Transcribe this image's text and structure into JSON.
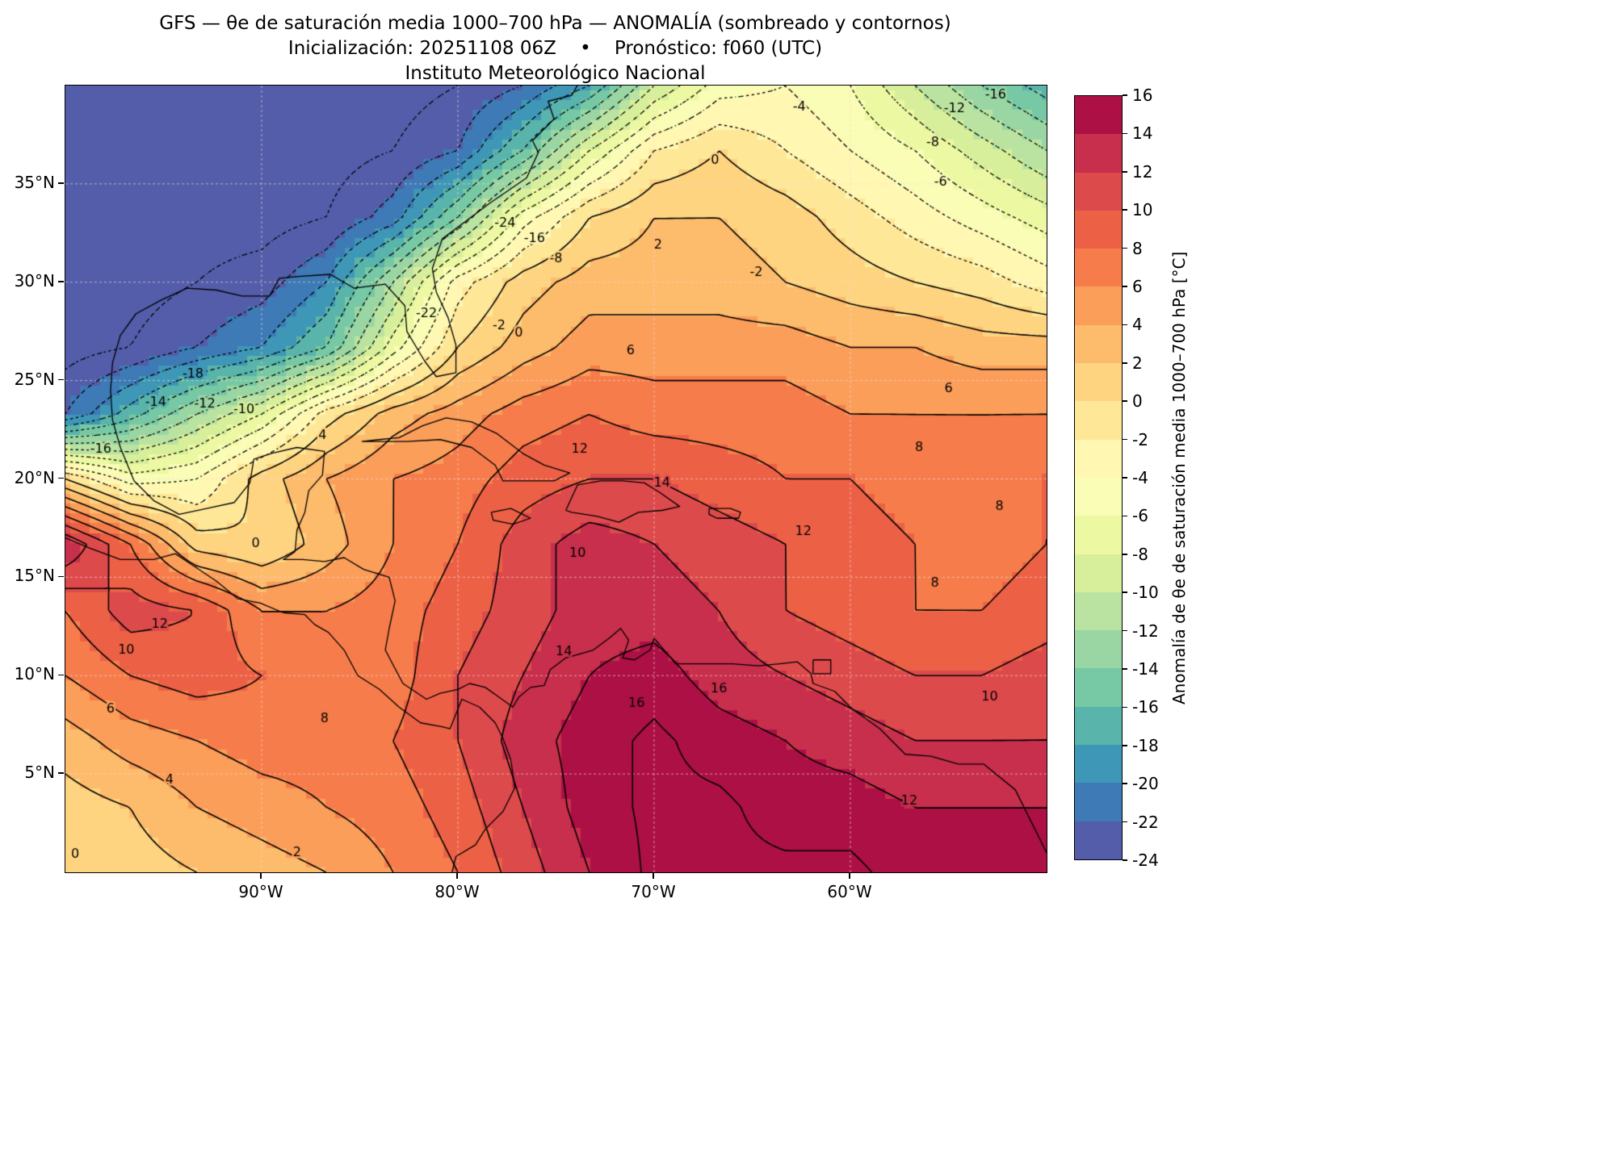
{
  "title": {
    "line1": "GFS — θe de saturación media 1000–700 hPa — ANOMALÍA (sombreado y contornos)",
    "line2": "Inicialización: 20251108 06Z    •    Pronóstico: f060 (UTC)",
    "line3": "Instituto Meteorológico Nacional"
  },
  "axes": {
    "lon_range": [
      -100,
      -50
    ],
    "lat_range": [
      0,
      40
    ],
    "x_ticks": [
      {
        "label": "90°W",
        "lon": -90
      },
      {
        "label": "80°W",
        "lon": -80
      },
      {
        "label": "70°W",
        "lon": -70
      },
      {
        "label": "60°W",
        "lon": -60
      }
    ],
    "y_ticks": [
      {
        "label": "35°N",
        "lat": 35
      },
      {
        "label": "30°N",
        "lat": 30
      },
      {
        "label": "25°N",
        "lat": 25
      },
      {
        "label": "20°N",
        "lat": 20
      },
      {
        "label": "15°N",
        "lat": 15
      },
      {
        "label": "10°N",
        "lat": 10
      },
      {
        "label": "5°N",
        "lat": 5
      }
    ]
  },
  "colorbar": {
    "label": "Anomalía de θe de saturación media 1000–700 hPa [°C]",
    "min": -24,
    "max": 16,
    "tick_values": [
      16,
      14,
      12,
      10,
      8,
      6,
      4,
      2,
      0,
      -2,
      -4,
      -6,
      -8,
      -10,
      -12,
      -14,
      -16,
      -18,
      -20,
      -22,
      -24
    ]
  },
  "chart_data": {
    "type": "heatmap",
    "field": "Anomalía de θe de saturación media 1000–700 hPa",
    "units": "°C",
    "model": "GFS",
    "init": "20251108 06Z",
    "forecast": "f060 (UTC)",
    "contour_levels": [
      -24,
      -22,
      -20,
      -18,
      -16,
      -14,
      -12,
      -10,
      -8,
      -6,
      -4,
      -2,
      0,
      2,
      4,
      6,
      8,
      10,
      12,
      14,
      16
    ],
    "band_colors": [
      "#535da9",
      "#3d7ab6",
      "#3f97b7",
      "#59b4ab",
      "#77c9a5",
      "#9ad6a4",
      "#bae3a1",
      "#d7ef9b",
      "#ecf8a2",
      "#f9fdb5",
      "#fff7b2",
      "#fee898",
      "#fed481",
      "#fdbb6c",
      "#fb9e5a",
      "#f67d4b",
      "#ec6146",
      "#dd4a4c",
      "#c72f4c",
      "#ac1045"
    ],
    "lon": [
      -100,
      -96.7,
      -93.3,
      -90,
      -86.7,
      -83.3,
      -80,
      -76.7,
      -73.3,
      -70,
      -66.7,
      -63.3,
      -60,
      -56.7,
      -53.3,
      -50
    ],
    "lat": [
      40,
      36.7,
      33.3,
      30,
      26.7,
      23.3,
      20,
      16.7,
      13.3,
      10,
      6.7,
      3.3,
      0
    ],
    "values": [
      [
        -25,
        -25,
        -25,
        -25,
        -25,
        -25,
        -24,
        -22,
        -18,
        -10,
        -5,
        -4,
        -6,
        -10,
        -14,
        -17
      ],
      [
        -25,
        -25,
        -25,
        -25,
        -25,
        -24,
        -22,
        -16,
        -8,
        -2,
        0,
        -2,
        -4,
        -6,
        -9,
        -12
      ],
      [
        -25,
        -25,
        -25,
        -25,
        -24,
        -21,
        -14,
        -5,
        0,
        2,
        2,
        1,
        -1,
        -3,
        -5,
        -7
      ],
      [
        -25,
        -25,
        -24,
        -23,
        -20,
        -12,
        -3,
        1,
        3,
        3,
        3,
        2,
        1,
        0,
        -1,
        -3
      ],
      [
        -25,
        -24,
        -22,
        -20,
        -16,
        -7,
        0,
        3,
        5,
        5,
        5,
        5,
        4,
        4,
        3,
        3
      ],
      [
        -22,
        -17,
        -12,
        -8,
        -1,
        3,
        5,
        7,
        8,
        7,
        7,
        7,
        6,
        6,
        6,
        6
      ],
      [
        0,
        -5,
        -4,
        1,
        4,
        6,
        7,
        9,
        10,
        10,
        9,
        8,
        8,
        7,
        7,
        8
      ],
      [
        14,
        8,
        1,
        0,
        3,
        6,
        8,
        11,
        13,
        12,
        11,
        10,
        9,
        8,
        7,
        8
      ],
      [
        8,
        11,
        10,
        6,
        6,
        7,
        9,
        11,
        13,
        13,
        12,
        10,
        9,
        8,
        8,
        9
      ],
      [
        6,
        8,
        9,
        8,
        7,
        7,
        10,
        12,
        14,
        15,
        13,
        12,
        11,
        10,
        10,
        11
      ],
      [
        3,
        5,
        6,
        7,
        7,
        8,
        10,
        13,
        15,
        16.5,
        15,
        14,
        13,
        12,
        12,
        12
      ],
      [
        1,
        2,
        4,
        5,
        6,
        7,
        9,
        12,
        15,
        16.5,
        16.5,
        15,
        15,
        14,
        14,
        14
      ],
      [
        0,
        1,
        2,
        3,
        4,
        6,
        8,
        11,
        14,
        16.5,
        16.5,
        16.5,
        16.5,
        15,
        15,
        15
      ]
    ],
    "annotations": [
      {
        "text": "-4",
        "lon": -62.6,
        "lat": 38.9
      },
      {
        "text": "-12",
        "lon": -54.7,
        "lat": 38.8
      },
      {
        "text": "-16",
        "lon": -52.6,
        "lat": 39.5
      },
      {
        "text": "-8",
        "lon": -55.8,
        "lat": 37.1
      },
      {
        "text": "0",
        "lon": -66.9,
        "lat": 36.2
      },
      {
        "text": "-6",
        "lon": -55.4,
        "lat": 35.1
      },
      {
        "text": "-24",
        "lon": -77.6,
        "lat": 33.0
      },
      {
        "text": "-16",
        "lon": -76.1,
        "lat": 32.2
      },
      {
        "text": "-8",
        "lon": -75.0,
        "lat": 31.2
      },
      {
        "text": "2",
        "lon": -69.8,
        "lat": 31.9
      },
      {
        "text": "-2",
        "lon": -64.8,
        "lat": 30.5
      },
      {
        "text": "-22",
        "lon": -81.6,
        "lat": 28.4
      },
      {
        "text": "-2",
        "lon": -77.9,
        "lat": 27.8
      },
      {
        "text": "0",
        "lon": -76.9,
        "lat": 27.4
      },
      {
        "text": "6",
        "lon": -71.2,
        "lat": 26.5
      },
      {
        "text": "-18",
        "lon": -93.5,
        "lat": 25.3
      },
      {
        "text": "-14",
        "lon": -95.4,
        "lat": 23.9
      },
      {
        "text": "-12",
        "lon": -92.9,
        "lat": 23.8
      },
      {
        "text": "-10",
        "lon": -90.9,
        "lat": 23.5
      },
      {
        "text": "-16",
        "lon": -98.2,
        "lat": 21.5
      },
      {
        "text": "4",
        "lon": -86.9,
        "lat": 22.2
      },
      {
        "text": "6",
        "lon": -55.0,
        "lat": 24.6
      },
      {
        "text": "8",
        "lon": -56.5,
        "lat": 21.6
      },
      {
        "text": "12",
        "lon": -73.8,
        "lat": 21.5
      },
      {
        "text": "14",
        "lon": -69.6,
        "lat": 19.8
      },
      {
        "text": "12",
        "lon": -62.4,
        "lat": 17.3
      },
      {
        "text": "10",
        "lon": -73.9,
        "lat": 16.2
      },
      {
        "text": "0",
        "lon": -90.3,
        "lat": 16.7
      },
      {
        "text": "12",
        "lon": -95.2,
        "lat": 12.6
      },
      {
        "text": "10",
        "lon": -96.9,
        "lat": 11.3
      },
      {
        "text": "6",
        "lon": -97.7,
        "lat": 8.3
      },
      {
        "text": "8",
        "lon": -86.8,
        "lat": 7.8
      },
      {
        "text": "14",
        "lon": -74.6,
        "lat": 11.2
      },
      {
        "text": "16",
        "lon": -70.9,
        "lat": 8.6
      },
      {
        "text": "16",
        "lon": -66.7,
        "lat": 9.3
      },
      {
        "text": "4",
        "lon": -94.7,
        "lat": 4.7
      },
      {
        "text": "0",
        "lon": -99.5,
        "lat": 0.9
      },
      {
        "text": "2",
        "lon": -88.2,
        "lat": 1.0
      },
      {
        "text": "12",
        "lon": -57.0,
        "lat": 3.6
      },
      {
        "text": "8",
        "lon": -55.7,
        "lat": 14.7
      },
      {
        "text": "10",
        "lon": -52.9,
        "lat": 8.9
      },
      {
        "text": "8",
        "lon": -52.4,
        "lat": 18.6
      }
    ],
    "coastlines": [
      [
        [
          -73.8,
          40.2
        ],
        [
          -74.2,
          39.5
        ],
        [
          -75.4,
          39.2
        ],
        [
          -75.1,
          38.3
        ],
        [
          -76.2,
          37.2
        ],
        [
          -75.9,
          36.6
        ],
        [
          -76.5,
          35.3
        ],
        [
          -78.4,
          34.0
        ],
        [
          -80.8,
          32.2
        ],
        [
          -81.3,
          30.7
        ],
        [
          -81.1,
          29.5
        ],
        [
          -80.5,
          28.2
        ],
        [
          -80.1,
          26.8
        ],
        [
          -80.1,
          25.4
        ],
        [
          -81.1,
          25.2
        ],
        [
          -81.7,
          26.0
        ],
        [
          -82.6,
          27.5
        ],
        [
          -82.7,
          28.8
        ],
        [
          -83.7,
          29.9
        ],
        [
          -85.3,
          29.7
        ],
        [
          -86.5,
          30.4
        ],
        [
          -88.0,
          30.3
        ],
        [
          -89.1,
          30.2
        ],
        [
          -89.6,
          29.3
        ],
        [
          -91.0,
          29.3
        ],
        [
          -92.3,
          29.6
        ],
        [
          -93.8,
          29.7
        ],
        [
          -95.1,
          29.1
        ],
        [
          -96.4,
          28.4
        ],
        [
          -97.2,
          27.3
        ],
        [
          -97.6,
          25.9
        ],
        [
          -97.7,
          24.5
        ],
        [
          -97.6,
          23.0
        ],
        [
          -97.2,
          21.6
        ],
        [
          -96.5,
          19.9
        ],
        [
          -95.5,
          18.9
        ],
        [
          -94.2,
          18.2
        ],
        [
          -92.8,
          18.5
        ],
        [
          -91.4,
          18.8
        ],
        [
          -90.6,
          19.8
        ],
        [
          -90.4,
          21.0
        ],
        [
          -89.5,
          21.3
        ],
        [
          -88.2,
          21.6
        ],
        [
          -86.8,
          21.4
        ],
        [
          -86.9,
          20.2
        ],
        [
          -87.6,
          19.4
        ],
        [
          -87.8,
          18.3
        ],
        [
          -88.2,
          17.4
        ],
        [
          -88.3,
          16.3
        ],
        [
          -88.9,
          15.9
        ],
        [
          -87.9,
          15.9
        ],
        [
          -86.8,
          15.8
        ],
        [
          -85.8,
          16.0
        ],
        [
          -84.8,
          15.4
        ],
        [
          -83.5,
          15.0
        ],
        [
          -83.2,
          13.8
        ],
        [
          -83.5,
          12.4
        ],
        [
          -83.7,
          11.3
        ],
        [
          -82.8,
          9.6
        ],
        [
          -82.2,
          9.2
        ],
        [
          -81.6,
          8.8
        ],
        [
          -80.9,
          9.1
        ],
        [
          -80.0,
          9.3
        ],
        [
          -79.4,
          9.6
        ],
        [
          -78.6,
          9.4
        ],
        [
          -77.9,
          8.9
        ],
        [
          -77.2,
          8.4
        ],
        [
          -76.9,
          8.9
        ],
        [
          -76.3,
          9.4
        ],
        [
          -75.6,
          9.5
        ],
        [
          -75.3,
          10.3
        ],
        [
          -74.5,
          10.9
        ],
        [
          -73.1,
          11.3
        ],
        [
          -72.3,
          11.9
        ],
        [
          -71.7,
          12.4
        ],
        [
          -71.3,
          11.8
        ],
        [
          -71.6,
          10.9
        ],
        [
          -71.0,
          10.8
        ],
        [
          -70.2,
          11.3
        ],
        [
          -70.0,
          11.9
        ],
        [
          -68.9,
          10.6
        ],
        [
          -67.5,
          10.6
        ],
        [
          -66.0,
          10.6
        ],
        [
          -64.7,
          10.5
        ],
        [
          -63.6,
          10.6
        ],
        [
          -62.7,
          10.7
        ],
        [
          -62.0,
          10.1
        ],
        [
          -61.9,
          9.6
        ],
        [
          -60.8,
          9.2
        ],
        [
          -59.9,
          8.3
        ],
        [
          -58.5,
          7.3
        ],
        [
          -57.2,
          6.0
        ],
        [
          -55.9,
          5.9
        ],
        [
          -54.5,
          5.5
        ],
        [
          -53.2,
          5.5
        ],
        [
          -51.6,
          4.2
        ],
        [
          -51.0,
          3.0
        ],
        [
          -50.4,
          1.8
        ],
        [
          -50.0,
          1.0
        ]
      ],
      [
        [
          -100,
          17.0
        ],
        [
          -98.8,
          16.5
        ],
        [
          -97.2,
          15.9
        ],
        [
          -95.5,
          15.9
        ],
        [
          -94.4,
          16.2
        ],
        [
          -93.5,
          15.6
        ],
        [
          -92.3,
          14.8
        ],
        [
          -91.2,
          13.9
        ],
        [
          -90.1,
          13.7
        ],
        [
          -88.9,
          13.2
        ],
        [
          -87.8,
          13.1
        ],
        [
          -87.3,
          12.6
        ],
        [
          -86.6,
          12.2
        ],
        [
          -85.8,
          11.3
        ],
        [
          -85.1,
          10.0
        ],
        [
          -84.0,
          9.3
        ],
        [
          -83.0,
          8.4
        ],
        [
          -81.9,
          7.6
        ],
        [
          -80.8,
          7.4
        ],
        [
          -80.4,
          7.3
        ],
        [
          -79.8,
          8.8
        ],
        [
          -78.9,
          8.4
        ],
        [
          -78.1,
          7.6
        ],
        [
          -77.7,
          6.8
        ],
        [
          -77.3,
          5.7
        ],
        [
          -77.1,
          4.3
        ],
        [
          -77.7,
          3.1
        ],
        [
          -78.6,
          2.2
        ],
        [
          -79.1,
          1.4
        ],
        [
          -80.1,
          0.8
        ],
        [
          -80.3,
          0.0
        ]
      ],
      [
        [
          -84.9,
          21.9
        ],
        [
          -84.0,
          22.0
        ],
        [
          -83.0,
          22.1
        ],
        [
          -81.8,
          22.7
        ],
        [
          -80.6,
          23.1
        ],
        [
          -79.3,
          22.9
        ],
        [
          -78.0,
          22.3
        ],
        [
          -76.7,
          21.3
        ],
        [
          -75.6,
          20.7
        ],
        [
          -74.3,
          20.3
        ],
        [
          -75.1,
          19.9
        ],
        [
          -76.5,
          19.9
        ],
        [
          -77.7,
          19.9
        ],
        [
          -78.1,
          20.7
        ],
        [
          -79.3,
          21.6
        ],
        [
          -80.9,
          22.0
        ],
        [
          -82.6,
          21.9
        ],
        [
          -83.7,
          21.9
        ],
        [
          -84.9,
          21.9
        ]
      ],
      [
        [
          -74.5,
          18.4
        ],
        [
          -73.9,
          19.7
        ],
        [
          -72.7,
          19.9
        ],
        [
          -71.6,
          19.9
        ],
        [
          -70.5,
          19.8
        ],
        [
          -69.7,
          19.3
        ],
        [
          -68.7,
          18.6
        ],
        [
          -69.6,
          18.4
        ],
        [
          -70.8,
          18.3
        ],
        [
          -71.8,
          17.8
        ],
        [
          -72.9,
          18.1
        ],
        [
          -74.2,
          18.3
        ],
        [
          -74.5,
          18.4
        ]
      ],
      [
        [
          -78.3,
          18.3
        ],
        [
          -77.3,
          18.5
        ],
        [
          -76.3,
          18.0
        ],
        [
          -77.2,
          17.7
        ],
        [
          -78.2,
          17.9
        ],
        [
          -78.3,
          18.3
        ]
      ],
      [
        [
          -67.2,
          18.5
        ],
        [
          -66.1,
          18.5
        ],
        [
          -65.6,
          18.3
        ],
        [
          -65.7,
          18.0
        ],
        [
          -66.8,
          18.0
        ],
        [
          -67.2,
          18.2
        ],
        [
          -67.2,
          18.5
        ]
      ],
      [
        [
          -61.9,
          10.8
        ],
        [
          -61.0,
          10.8
        ],
        [
          -61.0,
          10.1
        ],
        [
          -61.9,
          10.1
        ],
        [
          -61.9,
          10.8
        ]
      ]
    ]
  }
}
